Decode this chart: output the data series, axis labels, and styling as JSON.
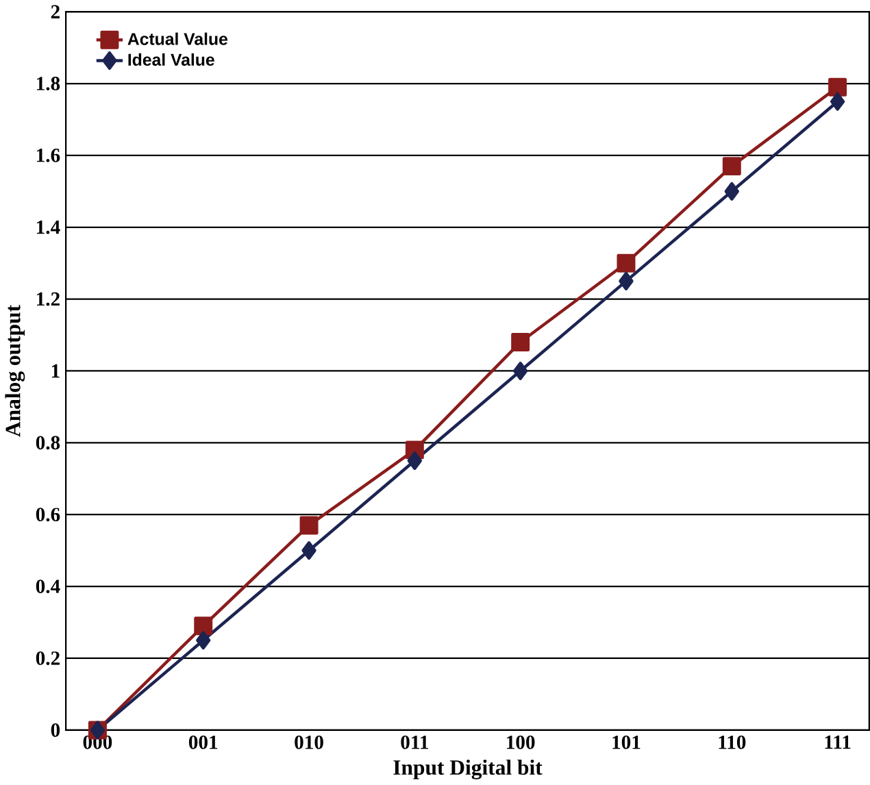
{
  "chart_data": {
    "type": "line",
    "xlabel": "Input Digital bit",
    "ylabel": "Analog output",
    "categories": [
      "000",
      "001",
      "010",
      "011",
      "100",
      "101",
      "110",
      "111"
    ],
    "series": [
      {
        "name": "Actual Value",
        "color": "#8b1c1c",
        "marker": "square",
        "values": [
          0,
          0.29,
          0.57,
          0.78,
          1.08,
          1.3,
          1.57,
          1.79
        ]
      },
      {
        "name": "Ideal Value",
        "color": "#1c2452",
        "marker": "diamond",
        "values": [
          0,
          0.25,
          0.5,
          0.75,
          1.0,
          1.25,
          1.5,
          1.75
        ]
      }
    ],
    "ylim": [
      0,
      2
    ],
    "yticks": [
      0,
      0.2,
      0.4,
      0.6,
      0.8,
      1,
      1.2,
      1.4,
      1.6,
      1.8,
      2
    ],
    "grid": "y",
    "legend": "top left",
    "line_style": "solid"
  }
}
